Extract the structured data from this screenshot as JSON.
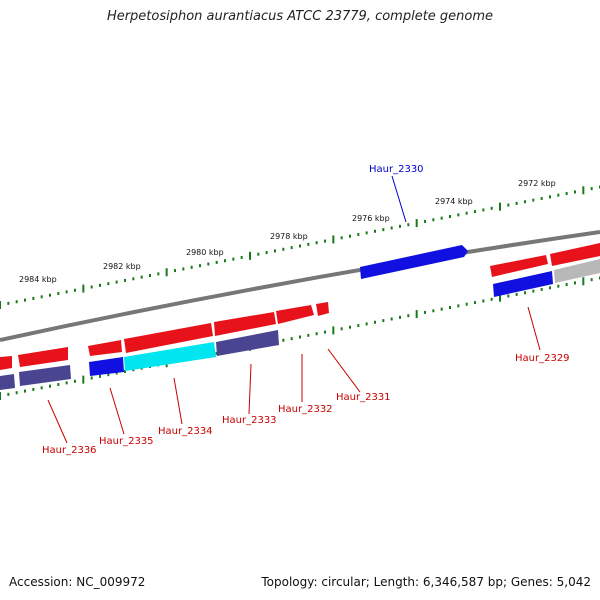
{
  "title": "Herpetosiphon aurantiacus ATCC 23779, complete genome",
  "footer": {
    "accession": "Accession: NC_009972",
    "topology": "Topology: circular; Length: 6,346,587 bp; Genes: 5,042"
  },
  "scale_labels": [
    "2972 kbp",
    "2974 kbp",
    "2976 kbp",
    "2978 kbp",
    "2980 kbp",
    "2982 kbp",
    "2984 kbp"
  ],
  "gene_labels": [
    {
      "text": "Haur_2330",
      "color": "#0000c8"
    },
    {
      "text": "Haur_2329",
      "color": "#c80000"
    },
    {
      "text": "Haur_2331",
      "color": "#c80000"
    },
    {
      "text": "Haur_2332",
      "color": "#c80000"
    },
    {
      "text": "Haur_2333",
      "color": "#c80000"
    },
    {
      "text": "Haur_2334",
      "color": "#c80000"
    },
    {
      "text": "Haur_2335",
      "color": "#c80000"
    },
    {
      "text": "Haur_2336",
      "color": "#c80000"
    }
  ],
  "colors": {
    "backbone": "#7a7a7a",
    "cds_forward": "#e8121a",
    "cds_reverse": "#2a2ad8",
    "cds_reverse_dark": "#4a4590",
    "cds_highlight": "#00e5f0",
    "cds_grey": "#b0b0b0",
    "ticks": "#1a7a1a"
  }
}
